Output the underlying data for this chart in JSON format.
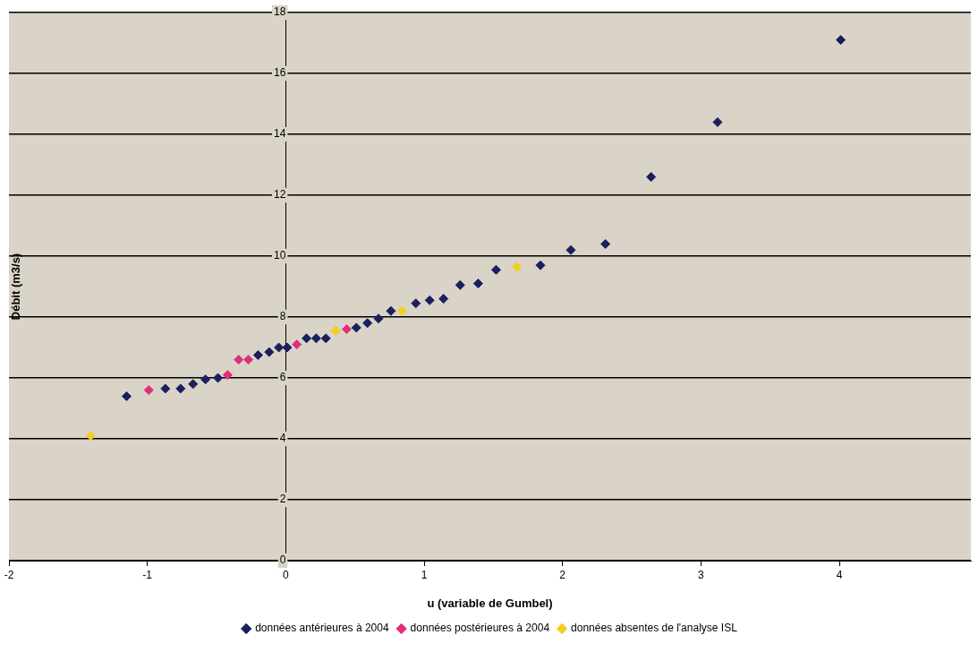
{
  "chart_data": {
    "type": "scatter",
    "xlabel": "u (variable de Gumbel)",
    "ylabel": "Débit (m3/s)",
    "xlim": [
      -2,
      4.95
    ],
    "xticks": [
      -2,
      -1,
      0,
      1,
      2,
      3,
      4
    ],
    "ylim": [
      0,
      18
    ],
    "yticks": [
      0,
      2,
      4,
      6,
      8,
      10,
      12,
      14,
      16,
      18
    ],
    "grid": "y",
    "legend": "bottom",
    "marker": "diamond",
    "series": [
      {
        "name": "données antérieures à 2004",
        "color": "#1a1f5e",
        "x": [
          -1.15,
          -0.87,
          -0.76,
          -0.67,
          -0.58,
          -0.49,
          -0.2,
          -0.12,
          -0.05,
          0.01,
          0.15,
          0.22,
          0.29,
          0.51,
          0.59,
          0.67,
          0.76,
          0.94,
          1.04,
          1.14,
          1.26,
          1.39,
          1.52,
          1.84,
          2.06,
          2.31,
          2.64,
          3.12,
          4.01
        ],
        "values": [
          5.4,
          5.65,
          5.65,
          5.8,
          5.95,
          6.0,
          6.75,
          6.85,
          7.0,
          7.0,
          7.3,
          7.3,
          7.3,
          7.65,
          7.8,
          7.95,
          8.2,
          8.45,
          8.55,
          8.6,
          9.05,
          9.1,
          9.55,
          9.7,
          10.2,
          10.4,
          12.6,
          14.4,
          17.1
        ]
      },
      {
        "name": "données postérieures à 2004",
        "color": "#e0307a",
        "x": [
          -0.99,
          -0.42,
          -0.34,
          -0.27,
          0.08,
          0.44
        ],
        "values": [
          5.6,
          6.1,
          6.6,
          6.6,
          7.1,
          7.6
        ]
      },
      {
        "name": "données absentes de l'analyse ISL",
        "color": "#f0d020",
        "x": [
          -1.41,
          0.36,
          0.84,
          1.67
        ],
        "values": [
          4.1,
          7.55,
          8.2,
          9.65
        ]
      }
    ]
  }
}
